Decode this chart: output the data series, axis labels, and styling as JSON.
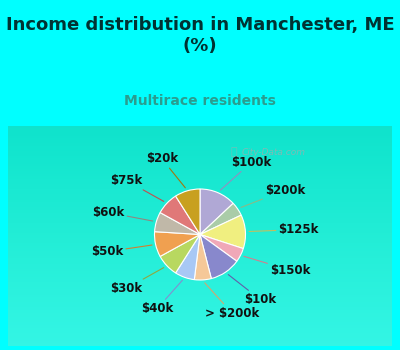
{
  "title": "Income distribution in Manchester, ME\n(%)",
  "subtitle": "Multirace residents",
  "title_color": "#003333",
  "subtitle_color": "#2a9d8f",
  "bg_top_color": "#00ffff",
  "bg_chart_top": "#e0f5f0",
  "bg_chart_bottom": "#c8f0d8",
  "watermark": "City-Data.com",
  "labels": [
    "$100k",
    "$200k",
    "$125k",
    "$150k",
    "$10k",
    "> $200k",
    "$40k",
    "$30k",
    "$50k",
    "$60k",
    "$75k",
    "$20k"
  ],
  "values": [
    13,
    5,
    12,
    5,
    11,
    6,
    7,
    8,
    9,
    7,
    8,
    9
  ],
  "colors": [
    "#b0a8d5",
    "#aacca8",
    "#f0ef80",
    "#f0a8b8",
    "#8888cc",
    "#f5c898",
    "#a8c8f5",
    "#b8d860",
    "#f0a050",
    "#c0b8a8",
    "#e07878",
    "#c8a020"
  ],
  "label_fontsize": 8.5,
  "title_fontsize": 13,
  "startangle": 90,
  "line_colors": [
    "#9090c0",
    "#88bb88",
    "#c0c060",
    "#d08090",
    "#6060aa",
    "#d0a870",
    "#8090d0",
    "#90a840",
    "#d08030",
    "#908880",
    "#c05050",
    "#a07810"
  ]
}
